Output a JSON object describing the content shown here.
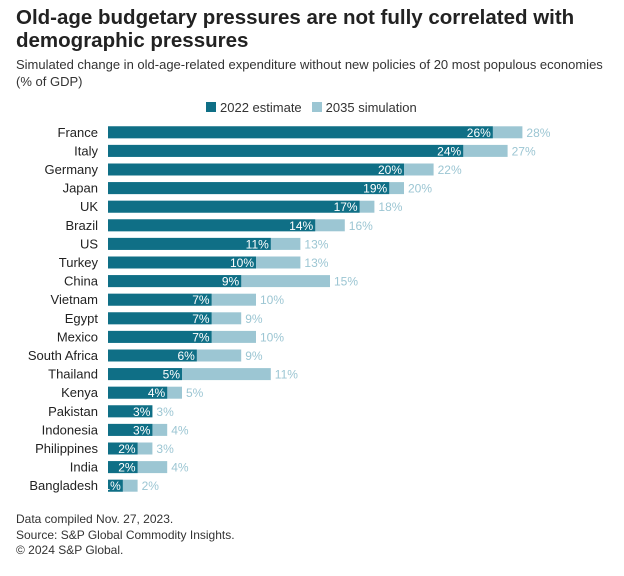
{
  "header": {
    "title": "Old-age budgetary pressures are not fully correlated with demographic pressures",
    "subtitle": "Simulated change in old-age-related expenditure without new policies of 20 most populous economies (% of GDP)"
  },
  "chart_data": {
    "type": "bar",
    "orientation": "horizontal",
    "categories": [
      "France",
      "Italy",
      "Germany",
      "Japan",
      "UK",
      "Brazil",
      "US",
      "Turkey",
      "China",
      "Vietnam",
      "Egypt",
      "Mexico",
      "South Africa",
      "Thailand",
      "Kenya",
      "Pakistan",
      "Indonesia",
      "Philippines",
      "India",
      "Bangladesh"
    ],
    "series": [
      {
        "name": "2022 estimate",
        "color": "#0f6f86",
        "values": [
          26,
          24,
          20,
          19,
          17,
          14,
          11,
          10,
          9,
          7,
          7,
          7,
          6,
          5,
          4,
          3,
          3,
          2,
          2,
          1
        ]
      },
      {
        "name": "2035 simulation",
        "color": "#9cc6d3",
        "values": [
          28,
          27,
          22,
          20,
          18,
          16,
          13,
          13,
          15,
          10,
          9,
          10,
          9,
          11,
          5,
          3,
          4,
          3,
          4,
          2
        ]
      }
    ],
    "labels": {
      "2022": [
        "26%",
        "24%",
        "20%",
        "19%",
        "17%",
        "14%",
        "11%",
        "10%",
        "9%",
        "7%",
        "7%",
        "7%",
        "6%",
        "5%",
        "4%",
        "3%",
        "3%",
        "2%",
        "2%",
        "1%"
      ],
      "2035": [
        "28%",
        "27%",
        "22%",
        "20%",
        "18%",
        "16%",
        "13%",
        "13%",
        "15%",
        "10%",
        "9%",
        "10%",
        "9%",
        "11%",
        "5%",
        "3%",
        "4%",
        "3%",
        "4%",
        "2%"
      ]
    },
    "xlim": [
      0,
      28
    ],
    "grid": false,
    "legend": "top"
  },
  "footer": {
    "compiled": "Data compiled Nov. 27, 2023.",
    "source": "Source: S&P Global Commodity Insights.",
    "copyright": "© 2024 S&P Global."
  }
}
